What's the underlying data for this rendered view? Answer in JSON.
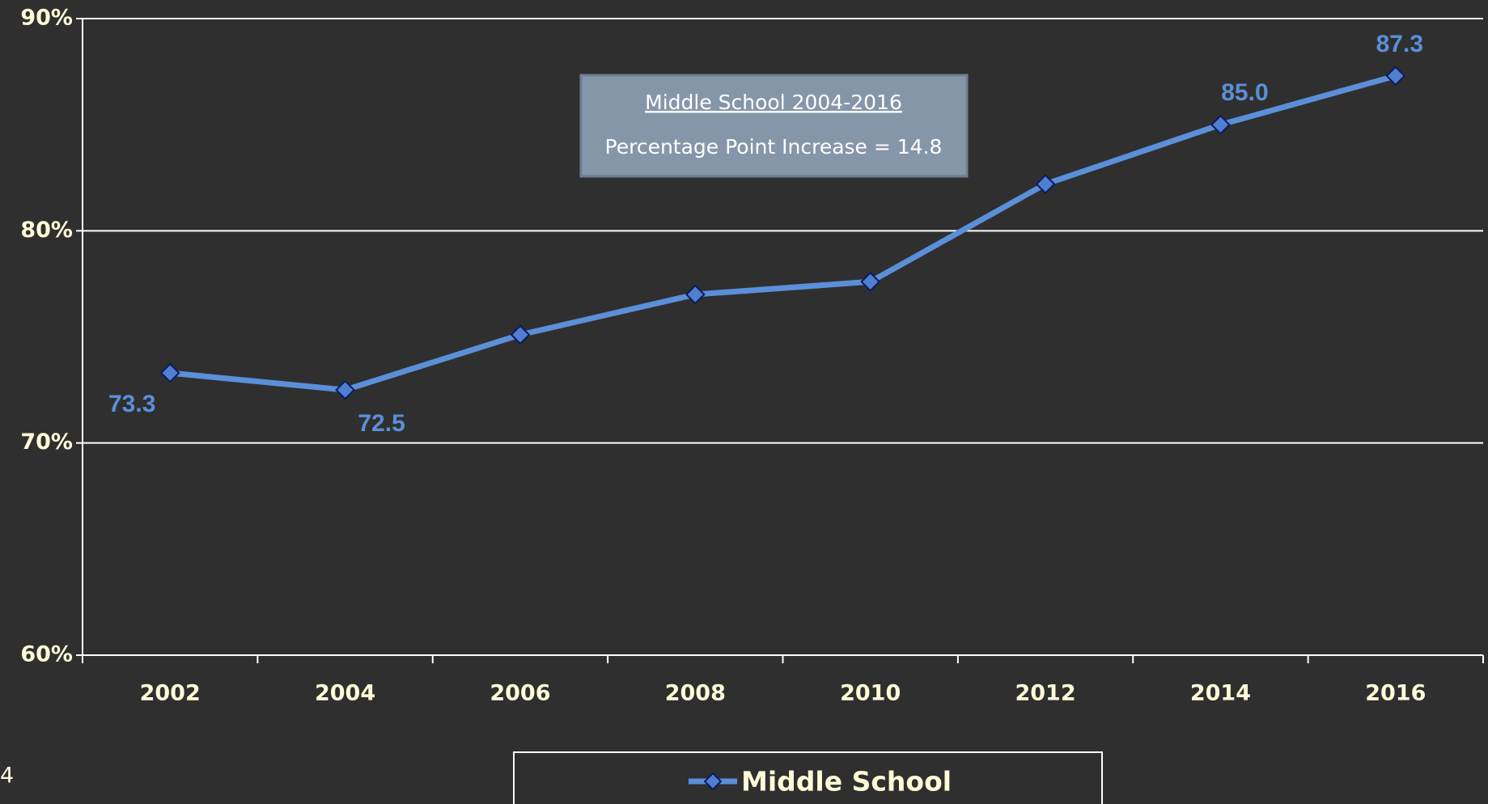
{
  "chart_data": {
    "type": "line",
    "categories": [
      "2002",
      "2004",
      "2006",
      "2008",
      "2010",
      "2012",
      "2014",
      "2016"
    ],
    "series": [
      {
        "name": "Middle School",
        "color": "#5b8fd9",
        "values": [
          73.3,
          72.5,
          75.1,
          77.0,
          77.6,
          82.2,
          85.0,
          87.3
        ],
        "value_labels": [
          "73.3",
          "72.5",
          null,
          null,
          null,
          null,
          "85.0",
          "87.3"
        ]
      }
    ],
    "ylim": [
      60,
      90
    ],
    "yticks": [
      {
        "value": 60,
        "label": "60%"
      },
      {
        "value": 70,
        "label": "70%"
      },
      {
        "value": 80,
        "label": "80%"
      },
      {
        "value": 90,
        "label": "90%"
      }
    ],
    "grid": true,
    "annotations": [
      "Middle School 2004-2016",
      "Percentage Point Increase = 14.8"
    ],
    "slide_number": "4"
  }
}
